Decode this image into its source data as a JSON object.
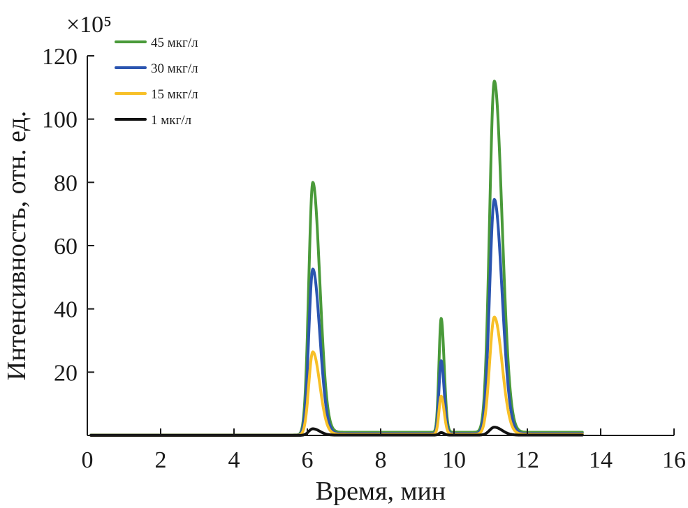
{
  "chart_data": {
    "type": "line",
    "xlabel": "Время, мин",
    "ylabel": "Интенсивность, отн. ед.",
    "y_multiplier": "×10⁵",
    "xlim": [
      0,
      16
    ],
    "ylim": [
      0,
      120
    ],
    "x_ticks": [
      0,
      2,
      4,
      6,
      8,
      10,
      12,
      14,
      16
    ],
    "y_ticks": [
      20,
      40,
      60,
      80,
      100,
      120
    ],
    "legend_position": "top-left",
    "grid": false,
    "peaks": [
      {
        "x": 6.15,
        "left_width": 0.11,
        "right_width": 0.19
      },
      {
        "x": 9.65,
        "left_width": 0.06,
        "right_width": 0.08
      },
      {
        "x": 11.1,
        "left_width": 0.13,
        "right_width": 0.21
      }
    ],
    "series": [
      {
        "name": "45 мкг/л",
        "color": "#4a9a3a",
        "peak_values": [
          79,
          36,
          111
        ],
        "baseline": 1.0
      },
      {
        "name": "30 мкг/л",
        "color": "#2b55b0",
        "peak_values": [
          52,
          23,
          74
        ],
        "baseline": 0.6
      },
      {
        "name": "15 мкг/л",
        "color": "#f7c028",
        "peak_values": [
          26,
          12,
          37
        ],
        "baseline": 0.4
      },
      {
        "name": "1 мкг/л",
        "color": "#111111",
        "peak_values": [
          2,
          0.8,
          2.5
        ],
        "baseline": 0.1
      }
    ]
  }
}
